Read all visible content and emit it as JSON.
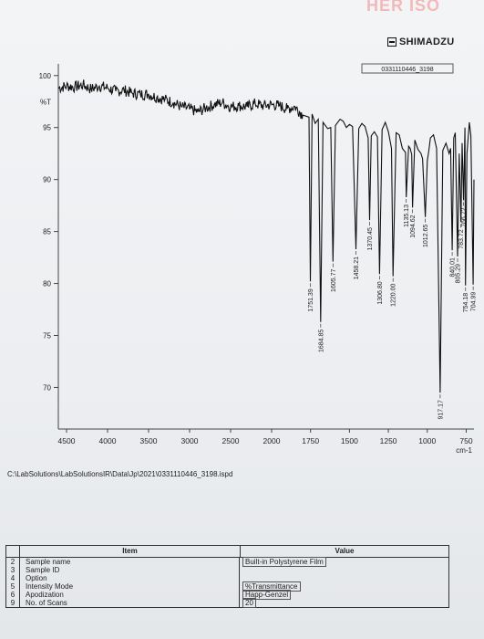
{
  "header": {
    "corner_text": "HER ISO",
    "brand": "SHIMADZU",
    "sample_id_box": "0331110446_3198"
  },
  "chart_data": {
    "type": "line",
    "xlabel": "",
    "ylabel": "%T",
    "x_unit": "cm-1",
    "xlim": [
      4600,
      700
    ],
    "ylim": [
      66,
      102
    ],
    "x_reversed": true,
    "x_ticks": [
      4500,
      4000,
      3500,
      3000,
      2500,
      2000,
      1750,
      1500,
      1250,
      1000,
      750
    ],
    "y_ticks": [
      100,
      95,
      90,
      85,
      80,
      75,
      70
    ],
    "grid": false,
    "series": [
      {
        "x": [
          4600,
          4500,
          4400,
          4300,
          4200,
          4100,
          4000,
          3900,
          3800,
          3700,
          3600,
          3500,
          3400,
          3300,
          3200,
          3100,
          3000,
          2900,
          2800,
          2700,
          2600,
          2500,
          2400,
          2300,
          2200,
          2100,
          2000,
          1950,
          1900,
          1850,
          1800,
          1760,
          1751.39,
          1740,
          1720,
          1700,
          1684.85,
          1670,
          1640,
          1620,
          1605.77,
          1590,
          1560,
          1540,
          1520,
          1500,
          1480,
          1458.21,
          1440,
          1420,
          1400,
          1380,
          1370.45,
          1360,
          1340,
          1320,
          1306.8,
          1290,
          1270,
          1250,
          1230,
          1220,
          1200,
          1180,
          1160,
          1140,
          1135.13,
          1120,
          1110,
          1100,
          1094.62,
          1080,
          1060,
          1040,
          1030,
          1012.65,
          1000,
          990,
          980,
          960,
          940,
          917.17,
          900,
          880,
          860,
          850,
          840.01,
          830,
          820,
          805.29,
          795,
          783.72,
          776,
          766.72,
          758,
          754.18,
          745,
          730,
          720,
          704.99,
          700
        ],
        "y": [
          98.8,
          99.0,
          98.9,
          99.1,
          98.7,
          99.0,
          98.8,
          98.5,
          98.6,
          98.3,
          98.2,
          98.2,
          97.9,
          97.7,
          97.4,
          97.0,
          96.8,
          96.5,
          96.9,
          97.2,
          97.4,
          97.0,
          97.1,
          97.0,
          97.3,
          97.1,
          97.2,
          97.1,
          96.8,
          97.0,
          96.2,
          96.0,
          80.2,
          96.3,
          95.4,
          95.8,
          76.3,
          95.5,
          94.9,
          95.0,
          82.1,
          95.2,
          95.8,
          95.6,
          95.0,
          95.3,
          95.1,
          83.3,
          94.9,
          95.4,
          95.1,
          94.0,
          86.1,
          94.2,
          94.6,
          94.1,
          80.9,
          94.8,
          95.5,
          94.6,
          93.0,
          80.7,
          94.5,
          94.3,
          93.0,
          92.6,
          88.3,
          93.2,
          93.0,
          92.4,
          87.3,
          93.8,
          92.9,
          92.5,
          92.0,
          86.4,
          91.8,
          92.8,
          94.0,
          94.3,
          93.0,
          69.5,
          92.8,
          93.5,
          92.5,
          93.0,
          83.2,
          94.0,
          94.5,
          82.6,
          92.5,
          85.9,
          93.5,
          88.0,
          95.0,
          79.8,
          92.5,
          95.5,
          94.2,
          79.9,
          90.0
        ]
      }
    ],
    "peak_labels": [
      {
        "x": 1751.39,
        "label": "1751.39"
      },
      {
        "x": 1684.85,
        "label": "1684.85"
      },
      {
        "x": 1605.77,
        "label": "1605.77"
      },
      {
        "x": 1458.21,
        "label": "1458.21"
      },
      {
        "x": 1370.45,
        "label": "1370.45"
      },
      {
        "x": 1306.8,
        "label": "1306.80"
      },
      {
        "x": 1220.0,
        "label": "1220.00"
      },
      {
        "x": 1135.13,
        "label": "1135.13"
      },
      {
        "x": 1094.62,
        "label": "1094.62"
      },
      {
        "x": 1012.65,
        "label": "1012.65"
      },
      {
        "x": 917.17,
        "label": "917.17"
      },
      {
        "x": 840.01,
        "label": "840.01"
      },
      {
        "x": 805.29,
        "label": "805.29"
      },
      {
        "x": 783.72,
        "label": "783.72"
      },
      {
        "x": 766.72,
        "label": "766.72"
      },
      {
        "x": 754.18,
        "label": "754.18"
      },
      {
        "x": 704.99,
        "label": "704.99"
      }
    ]
  },
  "file_path": "C:\\LabSolutions\\LabSolutionsIR\\Data\\Jp\\2021\\0331110446_3198.ispd",
  "table": {
    "item_header": "Item",
    "value_header": "Value",
    "rows": [
      {
        "num": "2",
        "item": "Sample name",
        "value": "Built-in Polystyrene Film"
      },
      {
        "num": "3",
        "item": "Sample ID",
        "value": ""
      },
      {
        "num": "4",
        "item": "Option",
        "value": ""
      },
      {
        "num": "5",
        "item": "Intensity Mode",
        "value": "%Transmittance"
      },
      {
        "num": "6",
        "item": "Apodization",
        "value": "Happ-Genzel"
      },
      {
        "num": "9",
        "item": "No. of Scans",
        "value": "20"
      }
    ]
  }
}
